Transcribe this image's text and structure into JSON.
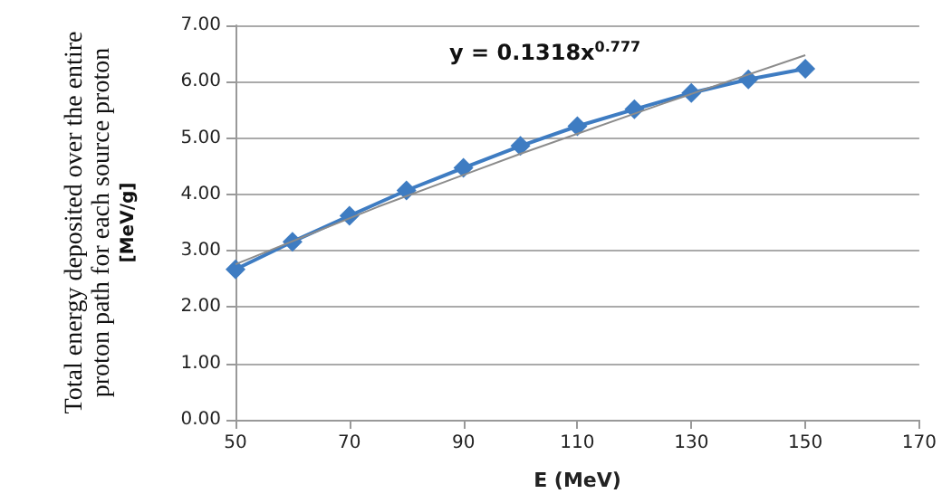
{
  "chart_data": {
    "type": "line",
    "xlabel": "E (MeV)",
    "ylabel": "Total energy deposited over the entire\nproton path for each source proton\n[MeV/g]",
    "x": [
      50,
      60,
      70,
      80,
      90,
      100,
      110,
      120,
      130,
      140,
      150
    ],
    "series": [
      {
        "color": "#3e7cc2",
        "marker": "diamond",
        "values": [
          2.67,
          3.16,
          3.62,
          4.07,
          4.47,
          4.86,
          5.21,
          5.51,
          5.8,
          6.04,
          6.23
        ]
      },
      {
        "type": "line",
        "color": "#8c8c8c",
        "marker": "none",
        "x": [
          50,
          75,
          100,
          125,
          150
        ],
        "values": [
          2.76,
          3.78,
          4.72,
          5.61,
          6.47
        ]
      }
    ],
    "xlim": [
      50,
      170
    ],
    "xticks": [
      50,
      70,
      90,
      110,
      130,
      150,
      170
    ],
    "ylim": [
      0,
      7
    ],
    "yticks": [
      {
        "value": 0,
        "label": "0.00"
      },
      {
        "value": 1,
        "label": "1.00"
      },
      {
        "value": 2,
        "label": "2.00"
      },
      {
        "value": 3,
        "label": "3.00"
      },
      {
        "value": 4,
        "label": "4.00"
      },
      {
        "value": 5,
        "label": "5.00"
      },
      {
        "value": 6,
        "label": "6.00"
      },
      {
        "value": 7,
        "label": "7.00"
      }
    ],
    "grid": "y",
    "annotations": [
      "y = 0.1318x$^{0.777}$"
    ]
  }
}
